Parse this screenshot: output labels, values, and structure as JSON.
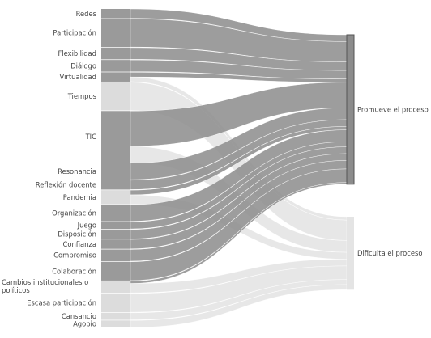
{
  "chart_data": {
    "type": "sankey",
    "targets": [
      {
        "id": "promueve",
        "label": "Promueve el proceso",
        "color": "#8c8c8c"
      },
      {
        "id": "dificulta",
        "label": "Dificulta el proceso",
        "color": "#d3d3d3"
      }
    ],
    "sources": [
      {
        "label": "Redes",
        "promueve": 4,
        "dificulta": 0
      },
      {
        "label": "Participación",
        "promueve": 12,
        "dificulta": 0
      },
      {
        "label": "Flexibilidad",
        "promueve": 5,
        "dificulta": 0
      },
      {
        "label": "Diálogo",
        "promueve": 5,
        "dificulta": 0
      },
      {
        "label": "Virtualidad",
        "promueve": 2,
        "dificulta": 2
      },
      {
        "label": "Tiempos",
        "promueve": 0,
        "dificulta": 12
      },
      {
        "label": "TIC",
        "promueve": 15,
        "dificulta": 7
      },
      {
        "label": "Resonancia",
        "promueve": 7,
        "dificulta": 0
      },
      {
        "label": "Reflexión docente",
        "promueve": 4,
        "dificulta": 0
      },
      {
        "label": "Pandemia",
        "promueve": 2,
        "dificulta": 4
      },
      {
        "label": "Organización",
        "promueve": 7,
        "dificulta": 0
      },
      {
        "label": "Juego",
        "promueve": 3,
        "dificulta": 0
      },
      {
        "label": "Disposición",
        "promueve": 4,
        "dificulta": 0
      },
      {
        "label": "Confianza",
        "promueve": 4,
        "dificulta": 0
      },
      {
        "label": "Compromiso",
        "promueve": 5,
        "dificulta": 0
      },
      {
        "label": "Colaboración",
        "promueve": 8,
        "dificulta": 0
      },
      {
        "label": "Cambios institucionales o políticos",
        "promueve": 1,
        "dificulta": 4
      },
      {
        "label": "Escasa participación",
        "promueve": 0,
        "dificulta": 8
      },
      {
        "label": "Cansancio",
        "promueve": 0,
        "dificulta": 3
      },
      {
        "label": "Agobio",
        "promueve": 0,
        "dificulta": 3
      }
    ]
  }
}
